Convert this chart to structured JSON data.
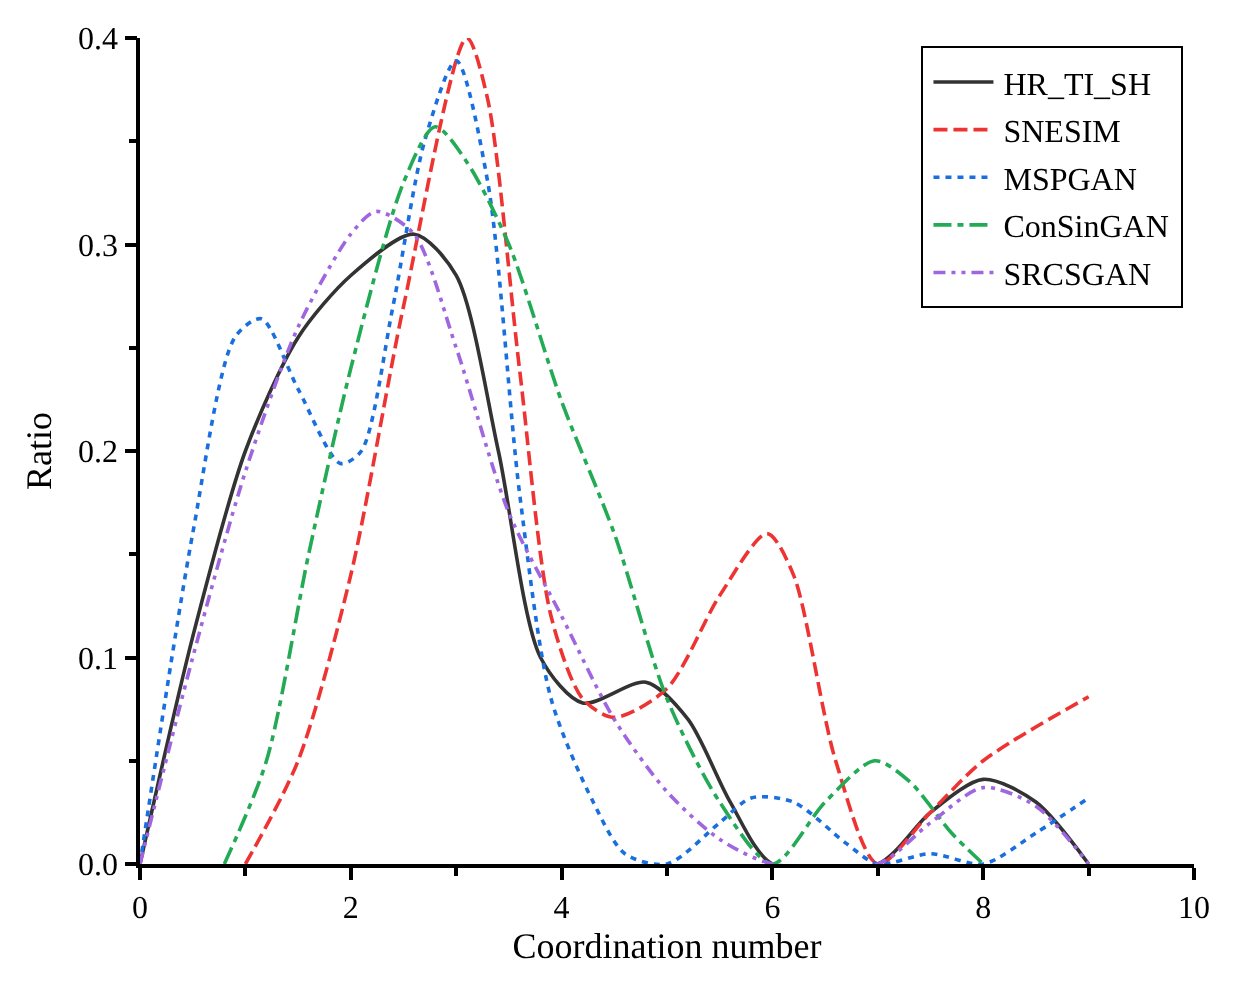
{
  "chart_data": {
    "type": "line",
    "xlabel": "Coordination number",
    "ylabel": "Ratio",
    "xlim": [
      0,
      10
    ],
    "xticks": [
      0,
      2,
      4,
      6,
      8,
      10
    ],
    "ylim": [
      0,
      0.4
    ],
    "yticks": [
      {
        "value": 0,
        "label": "0.0"
      },
      0.1,
      0.2,
      0.3,
      0.4
    ],
    "legend": "top right",
    "marker": "none",
    "series": [
      {
        "name": "HR_TI_SH",
        "color": "#333333",
        "line_style": "solid",
        "x": [
          0,
          0.5,
          1,
          1.5,
          2,
          2.6,
          3,
          3.4,
          3.8,
          4.2,
          4.8,
          5.2,
          5.6,
          6,
          7,
          7.5,
          8,
          8.5,
          9
        ],
        "values": [
          0,
          0.11,
          0.2,
          0.255,
          0.285,
          0.305,
          0.285,
          0.2,
          0.1,
          0.078,
          0.088,
          0.07,
          0.03,
          0,
          0,
          0.025,
          0.041,
          0.03,
          0
        ]
      },
      {
        "name": "SNESIM",
        "color": "#ee3333",
        "line_style": "dashed",
        "x": [
          1,
          1.5,
          2,
          2.5,
          3.1,
          3.3,
          3.6,
          3.9,
          4.2,
          4.5,
          5,
          5.5,
          5.95,
          6.2,
          6.6,
          7,
          7.5,
          8,
          9
        ],
        "values": [
          0,
          0.05,
          0.14,
          0.27,
          0.4,
          0.37,
          0.24,
          0.12,
          0.08,
          0.071,
          0.085,
          0.13,
          0.16,
          0.14,
          0.05,
          0,
          0.025,
          0.05,
          0.081
        ]
      },
      {
        "name": "MSPGAN",
        "color": "#1a6fdf",
        "line_style": "dotted",
        "x": [
          0,
          0.5,
          0.9,
          1.15,
          1.5,
          1.9,
          2.1,
          2.4,
          2.7,
          3.0,
          3.3,
          3.6,
          3.9,
          4.3,
          4.6,
          5,
          5.5,
          5.8,
          6.2,
          6.7,
          7,
          7.5,
          8,
          8.5,
          9
        ],
        "values": [
          0,
          0.16,
          0.255,
          0.264,
          0.23,
          0.194,
          0.2,
          0.27,
          0.35,
          0.389,
          0.33,
          0.18,
          0.08,
          0.03,
          0.005,
          0,
          0.02,
          0.032,
          0.03,
          0.01,
          0,
          0.005,
          0,
          0.015,
          0.032
        ]
      },
      {
        "name": "ConSinGAN",
        "color": "#22aa55",
        "line_style": "dashdot",
        "x": [
          0.8,
          1.2,
          1.6,
          2,
          2.5,
          2.8,
          3.1,
          3.5,
          4,
          4.5,
          5,
          5.5,
          6,
          6.5,
          6.97,
          7.3,
          7.7,
          8
        ],
        "values": [
          0,
          0.05,
          0.15,
          0.24,
          0.33,
          0.357,
          0.34,
          0.3,
          0.224,
          0.16,
          0.08,
          0.03,
          0,
          0.03,
          0.05,
          0.04,
          0.015,
          0
        ]
      },
      {
        "name": "SRCSGAN",
        "color": "#a066e0",
        "line_style": "dashdotdot",
        "x": [
          0,
          0.5,
          1,
          1.5,
          2,
          2.24,
          2.6,
          3,
          3.5,
          4,
          4.5,
          5,
          5.5,
          6,
          7,
          7.5,
          8,
          8.5,
          9
        ],
        "values": [
          0,
          0.1,
          0.19,
          0.26,
          0.305,
          0.316,
          0.305,
          0.25,
          0.17,
          0.12,
          0.07,
          0.035,
          0.012,
          0,
          0,
          0.02,
          0.037,
          0.028,
          0
        ]
      }
    ]
  }
}
